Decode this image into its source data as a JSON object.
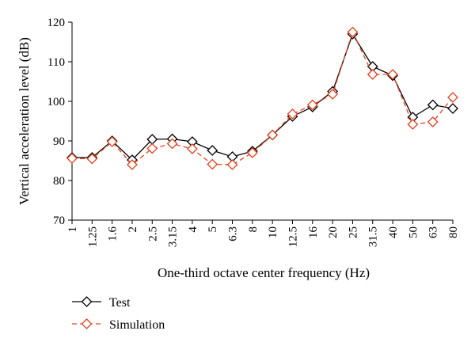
{
  "chart_data": {
    "type": "line",
    "xlabel": "One-third octave center frequency (Hz)",
    "ylabel": "Vertical acceleration level (dB)",
    "ylim": [
      70,
      120
    ],
    "yticks": [
      70,
      80,
      90,
      100,
      110,
      120
    ],
    "grid": false,
    "legend_position": "bottom-left",
    "categories": [
      "1",
      "1.25",
      "1.6",
      "2",
      "2.5",
      "3.15",
      "4",
      "5",
      "6.3",
      "8",
      "10",
      "12.5",
      "16",
      "20",
      "25",
      "31.5",
      "40",
      "50",
      "63",
      "80"
    ],
    "series": [
      {
        "name": "Test",
        "color": "#000000",
        "dash": "solid",
        "marker": "diamond",
        "values": [
          85.8,
          85.8,
          90.0,
          85.2,
          90.4,
          90.5,
          89.8,
          87.6,
          86.0,
          87.4,
          91.5,
          96.2,
          98.6,
          102.5,
          117.0,
          108.8,
          106.5,
          96.0,
          99.1,
          98.2
        ]
      },
      {
        "name": "Simulation",
        "color": "#e8401c",
        "dash": "dashed",
        "marker": "diamond",
        "values": [
          85.6,
          85.5,
          89.8,
          84.0,
          88.1,
          89.3,
          88.0,
          84.1,
          84.0,
          87.0,
          91.5,
          96.8,
          99.1,
          101.8,
          117.5,
          106.8,
          106.8,
          94.2,
          94.8,
          101.0
        ]
      }
    ]
  }
}
